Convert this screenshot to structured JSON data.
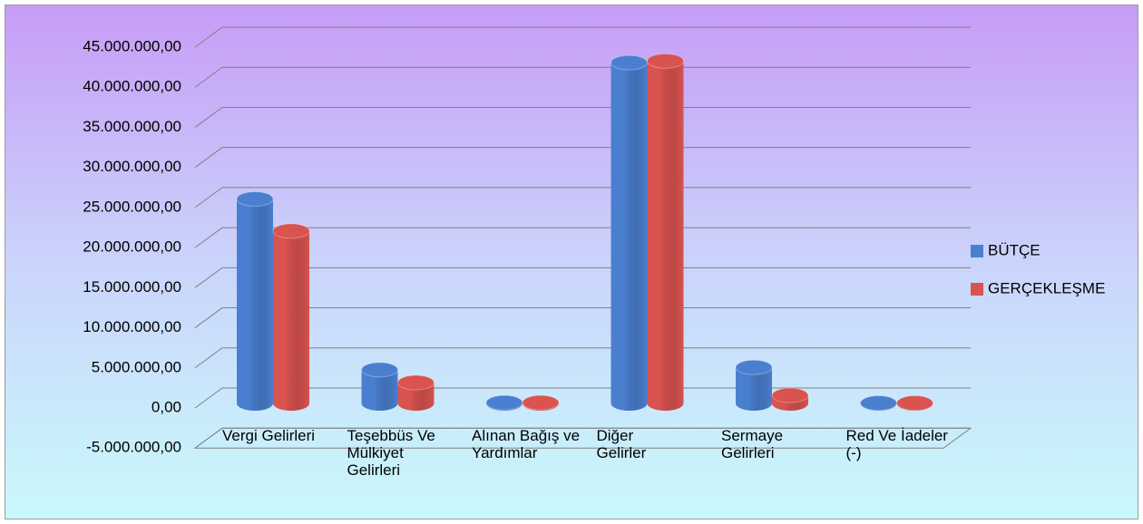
{
  "chart_data": {
    "type": "bar3d",
    "categories": [
      "Vergi Gelirleri",
      "Teşebbüs Ve Mülkiyet Gelirleri",
      "Alınan Bağış ve Yardımlar",
      "Diğer Gelirler",
      "Sermaye Gelirleri",
      "Red Ve İadeler (-)"
    ],
    "series": [
      {
        "name": "BÜTÇE",
        "color": "#4a7fd0",
        "values": [
          25500000,
          4200000,
          100000,
          42500000,
          4500000,
          50000
        ]
      },
      {
        "name": "GERÇEKLEŞME",
        "color": "#d9534f",
        "values": [
          21500000,
          2600000,
          100000,
          42700000,
          1000000,
          50000
        ]
      }
    ],
    "ylim": [
      -5000000,
      45000000
    ],
    "yticks": [
      {
        "value": -5000000,
        "label": "-5.000.000,00"
      },
      {
        "value": 0,
        "label": "0,00"
      },
      {
        "value": 5000000,
        "label": "5.000.000,00"
      },
      {
        "value": 10000000,
        "label": "10.000.000,00"
      },
      {
        "value": 15000000,
        "label": "15.000.000,00"
      },
      {
        "value": 20000000,
        "label": "20.000.000,00"
      },
      {
        "value": 25000000,
        "label": "25.000.000,00"
      },
      {
        "value": 30000000,
        "label": "30.000.000,00"
      },
      {
        "value": 35000000,
        "label": "35.000.000,00"
      },
      {
        "value": 40000000,
        "label": "40.000.000,00"
      },
      {
        "value": 45000000,
        "label": "45.000.000,00"
      }
    ],
    "grid": true,
    "legend": "right"
  }
}
